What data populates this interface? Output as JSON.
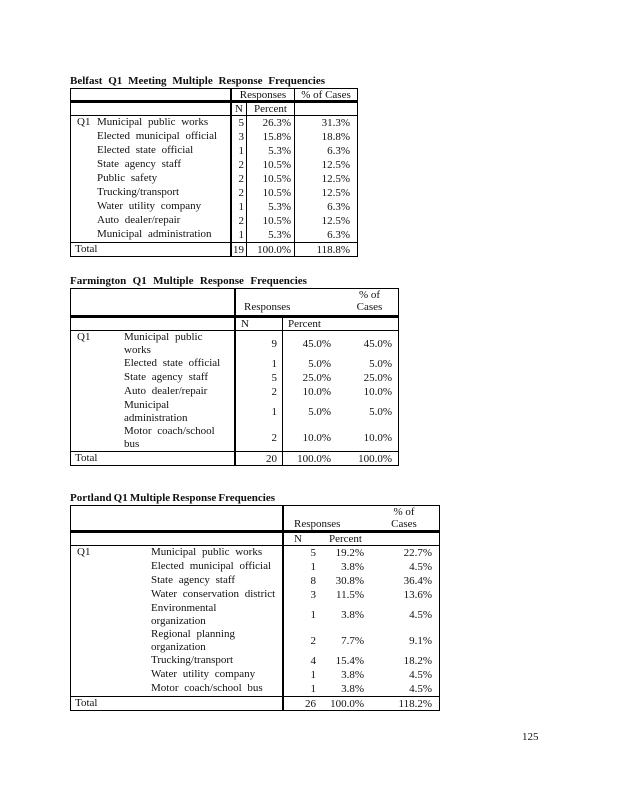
{
  "page": {
    "number": "125"
  },
  "tables": [
    {
      "name": "belfast",
      "title_words": [
        "Belfast",
        "Q1",
        "Meeting",
        "Multiple",
        "Response",
        "Frequencies"
      ],
      "headers": {
        "responses": "Responses",
        "pct_of_cases": "% of Cases",
        "n": "N",
        "percent": "Percent"
      },
      "rows": [
        {
          "q1": "Q1",
          "label": "Municipal public works",
          "n": "5",
          "percent": "26.3%",
          "pct_cases": "31.3%"
        },
        {
          "q1": "",
          "label": "Elected municipal official",
          "n": "3",
          "percent": "15.8%",
          "pct_cases": "18.8%"
        },
        {
          "q1": "",
          "label": "Elected state official",
          "n": "1",
          "percent": "5.3%",
          "pct_cases": "6.3%"
        },
        {
          "q1": "",
          "label": "State agency staff",
          "n": "2",
          "percent": "10.5%",
          "pct_cases": "12.5%"
        },
        {
          "q1": "",
          "label": "Public safety",
          "n": "2",
          "percent": "10.5%",
          "pct_cases": "12.5%"
        },
        {
          "q1": "",
          "label": "Trucking/transport",
          "n": "2",
          "percent": "10.5%",
          "pct_cases": "12.5%"
        },
        {
          "q1": "",
          "label": "Water utility company",
          "n": "1",
          "percent": "5.3%",
          "pct_cases": "6.3%"
        },
        {
          "q1": "",
          "label": "Auto dealer/repair",
          "n": "2",
          "percent": "10.5%",
          "pct_cases": "12.5%"
        },
        {
          "q1": "",
          "label": "Municipal administration",
          "n": "1",
          "percent": "5.3%",
          "pct_cases": "6.3%"
        }
      ],
      "total": {
        "label": "Total",
        "n": "19",
        "percent": "100.0%",
        "pct_cases": "118.8%"
      }
    },
    {
      "name": "farmington",
      "title_words": [
        "Farmington",
        "Q1",
        "Multiple",
        "Response",
        "Frequencies"
      ],
      "headers": {
        "responses": "Responses",
        "pct_of_cases": "% of\nCases",
        "n": "N",
        "percent": "Percent"
      },
      "rows": [
        {
          "q1": "Q1",
          "label": "Municipal public\nworks",
          "n": "9",
          "percent": "45.0%",
          "pct_cases": "45.0%"
        },
        {
          "q1": "",
          "label": "Elected state official",
          "n": "1",
          "percent": "5.0%",
          "pct_cases": "5.0%"
        },
        {
          "q1": "",
          "label": "State agency staff",
          "n": "5",
          "percent": "25.0%",
          "pct_cases": "25.0%"
        },
        {
          "q1": "",
          "label": "Auto dealer/repair",
          "n": "2",
          "percent": "10.0%",
          "pct_cases": "10.0%"
        },
        {
          "q1": "",
          "label": "Municipal\nadministration",
          "n": "1",
          "percent": "5.0%",
          "pct_cases": "5.0%"
        },
        {
          "q1": "",
          "label": "Motor coach/school\nbus",
          "n": "2",
          "percent": "10.0%",
          "pct_cases": "10.0%"
        }
      ],
      "total": {
        "label": "Total",
        "n": "20",
        "percent": "100.0%",
        "pct_cases": "100.0%"
      }
    },
    {
      "name": "portland",
      "title_words": [
        "Portland",
        "Q1",
        "Multiple",
        "Response",
        "Frequencies"
      ],
      "headers": {
        "responses": "Responses",
        "pct_of_cases": "% of\nCases",
        "n": "N",
        "percent": "Percent"
      },
      "rows": [
        {
          "q1": "Q1",
          "label": "Municipal public works",
          "n": "5",
          "percent": "19.2%",
          "pct_cases": "22.7%"
        },
        {
          "q1": "",
          "label": "Elected municipal official",
          "n": "1",
          "percent": "3.8%",
          "pct_cases": "4.5%"
        },
        {
          "q1": "",
          "label": "State agency staff",
          "n": "8",
          "percent": "30.8%",
          "pct_cases": "36.4%"
        },
        {
          "q1": "",
          "label": "Water conservation district",
          "n": "3",
          "percent": "11.5%",
          "pct_cases": "13.6%"
        },
        {
          "q1": "",
          "label": "Environmental\norganization",
          "n": "1",
          "percent": "3.8%",
          "pct_cases": "4.5%"
        },
        {
          "q1": "",
          "label": "Regional planning\norganization",
          "n": "2",
          "percent": "7.7%",
          "pct_cases": "9.1%"
        },
        {
          "q1": "",
          "label": "Trucking/transport",
          "n": "4",
          "percent": "15.4%",
          "pct_cases": "18.2%"
        },
        {
          "q1": "",
          "label": "Water utility company",
          "n": "1",
          "percent": "3.8%",
          "pct_cases": "4.5%"
        },
        {
          "q1": "",
          "label": "Motor coach/school bus",
          "n": "1",
          "percent": "3.8%",
          "pct_cases": "4.5%"
        }
      ],
      "total": {
        "label": "Total",
        "n": "26",
        "percent": "100.0%",
        "pct_cases": "118.2%"
      }
    }
  ]
}
